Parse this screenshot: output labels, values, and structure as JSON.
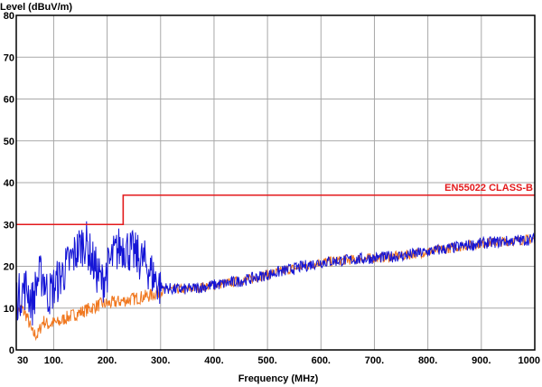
{
  "chart_data": {
    "type": "line",
    "xlabel": "Frequency (MHz)",
    "ylabel": "Level (dBuV/m)",
    "xlim": [
      30,
      1000
    ],
    "ylim": [
      0,
      80
    ],
    "x_ticks": [
      30,
      100,
      200,
      300,
      400,
      500,
      600,
      700,
      800,
      900,
      1000
    ],
    "x_tick_labels": [
      "30",
      "100.",
      "200.",
      "300.",
      "400.",
      "500.",
      "600.",
      "700.",
      "800.",
      "900.",
      "1000"
    ],
    "y_ticks": [
      0,
      10,
      20,
      30,
      40,
      50,
      60,
      70,
      80
    ],
    "grid": true,
    "colors": {
      "grid": "#a8a8a8",
      "frame": "#000000",
      "limit": "#e31a1c",
      "blue_trace": "#1414d6",
      "orange_trace": "#f07820"
    },
    "limit_line": {
      "name": "EN55022 CLASS-B",
      "segments": [
        {
          "x": [
            30,
            230
          ],
          "y": 30
        },
        {
          "x": [
            230,
            1000
          ],
          "y": 37
        }
      ]
    },
    "series": [
      {
        "color_key": "blue_trace",
        "x": [
          30,
          40,
          50,
          60,
          70,
          80,
          90,
          100,
          110,
          120,
          130,
          140,
          150,
          160,
          170,
          180,
          190,
          200,
          210,
          220,
          230,
          240,
          250,
          260,
          270,
          280,
          290,
          300,
          325,
          350,
          375,
          400,
          450,
          500,
          550,
          600,
          650,
          700,
          750,
          800,
          850,
          900,
          950,
          1000
        ],
        "y": [
          12,
          14,
          15,
          11,
          17,
          18,
          13,
          15,
          17,
          19,
          21,
          23,
          25,
          26,
          22,
          19,
          16,
          19,
          22,
          24,
          25,
          24,
          23,
          22,
          21,
          19,
          17,
          15,
          14.5,
          14.5,
          15,
          15.5,
          16.5,
          18,
          19.5,
          21,
          21.5,
          22,
          22.5,
          23.5,
          24.5,
          25.5,
          26,
          26.5
        ]
      },
      {
        "color_key": "orange_trace",
        "x": [
          30,
          40,
          50,
          60,
          70,
          80,
          90,
          100,
          110,
          120,
          130,
          140,
          150,
          160,
          170,
          180,
          190,
          200,
          220,
          240,
          260,
          280,
          300,
          325,
          350,
          375,
          400,
          450,
          500,
          550,
          600,
          650,
          700,
          750,
          800,
          850,
          900,
          950,
          1000
        ],
        "y": [
          9,
          10,
          8,
          4,
          3.5,
          7,
          6,
          6.5,
          6.5,
          7.5,
          8,
          8.5,
          9,
          9.5,
          10,
          10.5,
          11,
          11,
          11.5,
          12,
          12.5,
          13,
          14,
          14.5,
          14.5,
          15,
          15.5,
          16.5,
          18,
          19.5,
          21,
          21.5,
          22,
          22.5,
          23.5,
          24.5,
          25.5,
          26,
          26.5
        ]
      }
    ]
  }
}
